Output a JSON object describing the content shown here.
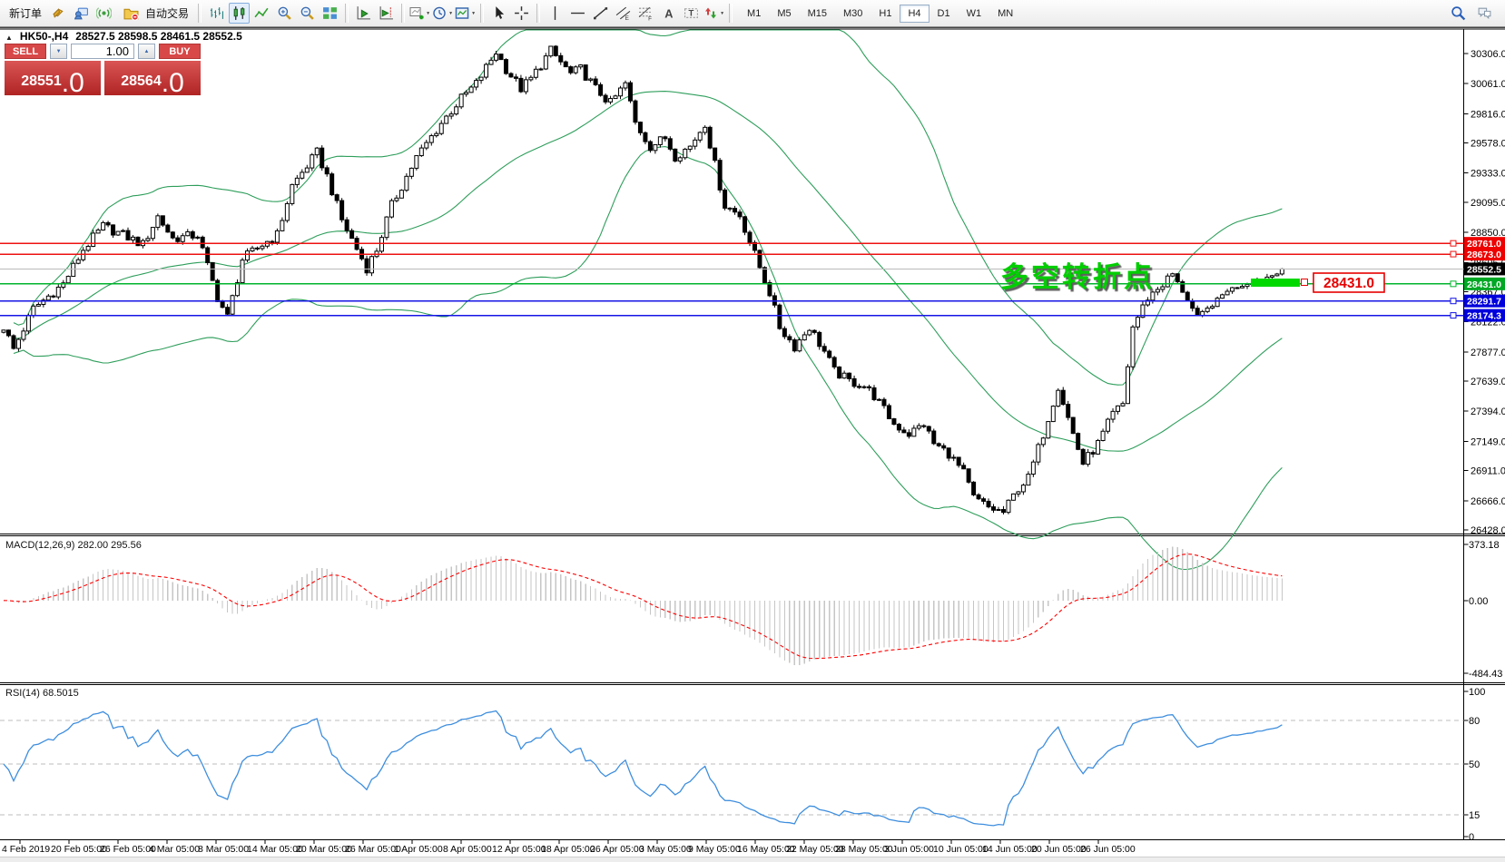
{
  "toolbar": {
    "new_order": "新订单",
    "autotrading": "自动交易",
    "timeframes": [
      "M1",
      "M5",
      "M15",
      "M30",
      "H1",
      "H4",
      "D1",
      "W1",
      "MN"
    ],
    "active_timeframe": "H4",
    "icon_names": [
      "market-watch",
      "terminal",
      "signals",
      "autotrading",
      "bar-chart",
      "candlestick-chart",
      "line-chart",
      "zoom-in",
      "zoom-out",
      "tile-windows",
      "auto-scroll",
      "chart-shift",
      "new-chart",
      "periods",
      "templates",
      "cursor",
      "crosshair",
      "vertical-line",
      "horizontal-line",
      "trendline",
      "equidistant-channel",
      "fibonacci",
      "text",
      "text-label",
      "arrows",
      "search",
      "chat"
    ]
  },
  "chart": {
    "title_symbol": "HK50-,H4",
    "title_ohlc": "28527.5 28598.5 28461.5 28552.5",
    "trade_panel": {
      "sell_label": "SELL",
      "buy_label": "BUY",
      "volume": "1.00",
      "sell_price": "28551",
      "sell_price_frac": ".0",
      "buy_price": "28564",
      "buy_price_frac": ".0"
    },
    "annotation_text": "多空转折点",
    "annotation_color": "#00ce00",
    "highlight_color": "#00d800",
    "price_tag_text": "28431.0",
    "price_tag_color": "#e60000",
    "price_axis_ticks": [
      30306.0,
      30061.0,
      29816.0,
      29578.0,
      29333.0,
      29095.0,
      28850.0,
      28605.0,
      28367.0,
      28122.0,
      27877.0,
      27639.0,
      27394.0,
      27149.0,
      26911.0,
      26666.0,
      26428.0
    ],
    "level_lines": [
      {
        "label": "28761.0",
        "price": 28761.0,
        "color": "#ee1111",
        "label_bg": "#ee0000",
        "width": 1.6
      },
      {
        "label": "28673.0",
        "price": 28673.0,
        "color": "#ee1111",
        "label_bg": "#ee0000",
        "width": 1.6
      },
      {
        "label": "28552.5",
        "price": 28552.5,
        "color": "#bbbbbb",
        "label_bg": "#000000",
        "width": 1,
        "handle": false,
        "role": "bid"
      },
      {
        "label": "28431.0",
        "price": 28431.0,
        "color": "#00b42c",
        "label_bg": "#00a824",
        "width": 1.5
      },
      {
        "label": "28291.7",
        "price": 28291.7,
        "color": "#1414e6",
        "label_bg": "#0000dc",
        "width": 1.6
      },
      {
        "label": "28174.3",
        "price": 28174.3,
        "color": "#1414e6",
        "label_bg": "#0000dc",
        "width": 1.6
      }
    ]
  },
  "macd": {
    "label": "MACD(12,26,9) 282.00 295.56",
    "axis_ticks": [
      373.18,
      0,
      -484.43
    ],
    "histogram_color": "#c6c6c6",
    "signal_color": "#ff0000",
    "last_values": [
      282.0,
      295.56
    ]
  },
  "rsi": {
    "label": "RSI(14) 68.5015",
    "axis_ticks": [
      100,
      80,
      50,
      15,
      0
    ],
    "levels": [
      80,
      50,
      15
    ],
    "line_color": "#3e8ede",
    "last_value": 68.5015
  },
  "time_axis": [
    "4 Feb 2019",
    "20 Feb 05:00",
    "26 Feb 05:00",
    "4 Mar 05:00",
    "8 Mar 05:00",
    "14 Mar 05:00",
    "20 Mar 05:00",
    "26 Mar 05:00",
    "1 Apr 05:00",
    "8 Apr 05:00",
    "12 Apr 05:00",
    "18 Apr 05:00",
    "26 Apr 05:00",
    "3 May 05:00",
    "9 May 05:00",
    "16 May 05:00",
    "22 May 05:00",
    "28 May 05:00",
    "3 Jun 05:00",
    "10 Jun 05:00",
    "14 Jun 05:00",
    "20 Jun 05:00",
    "26 Jun 05:00"
  ],
  "chart_data": {
    "type": "candlestick",
    "symbol": "HK50-",
    "timeframe": "H4",
    "visible_ohlc": {
      "open": 28527.5,
      "high": 28598.5,
      "low": 28461.5,
      "close": 28552.5
    },
    "last_close": 28552.5,
    "ylim": [
      26428.0,
      30306.0
    ],
    "bars": 258,
    "key_levels": [
      28761.0,
      28673.0,
      28431.0,
      28291.7,
      28174.3
    ],
    "indicators": [
      {
        "name": "Bollinger Bands",
        "color": "#2e9e5b",
        "render_period": 48,
        "deviation": 2
      },
      {
        "name": "MACD",
        "params": "12,26,9"
      },
      {
        "name": "RSI",
        "params": "14"
      }
    ],
    "close_waypoints": [
      [
        0,
        28080
      ],
      [
        2,
        27900
      ],
      [
        6,
        28230
      ],
      [
        12,
        28430
      ],
      [
        16,
        28710
      ],
      [
        20,
        28900
      ],
      [
        24,
        28830
      ],
      [
        28,
        28750
      ],
      [
        31,
        28980
      ],
      [
        34,
        28800
      ],
      [
        39,
        28830
      ],
      [
        43,
        28320
      ],
      [
        45,
        28160
      ],
      [
        48,
        28630
      ],
      [
        52,
        28750
      ],
      [
        55,
        28830
      ],
      [
        58,
        29230
      ],
      [
        63,
        29500
      ],
      [
        65,
        29310
      ],
      [
        68,
        28950
      ],
      [
        73,
        28560
      ],
      [
        75,
        28710
      ],
      [
        78,
        29070
      ],
      [
        83,
        29460
      ],
      [
        88,
        29740
      ],
      [
        92,
        29940
      ],
      [
        95,
        30060
      ],
      [
        99,
        30320
      ],
      [
        101,
        30180
      ],
      [
        104,
        30020
      ],
      [
        106,
        30100
      ],
      [
        110,
        30330
      ],
      [
        114,
        30140
      ],
      [
        116,
        30180
      ],
      [
        119,
        30020
      ],
      [
        122,
        29900
      ],
      [
        125,
        30060
      ],
      [
        127,
        29740
      ],
      [
        130,
        29550
      ],
      [
        133,
        29620
      ],
      [
        135,
        29470
      ],
      [
        138,
        29550
      ],
      [
        141,
        29740
      ],
      [
        144,
        29230
      ],
      [
        145,
        29070
      ],
      [
        148,
        28990
      ],
      [
        151,
        28670
      ],
      [
        154,
        28360
      ],
      [
        156,
        28080
      ],
      [
        159,
        27920
      ],
      [
        162,
        28080
      ],
      [
        165,
        27880
      ],
      [
        167,
        27720
      ],
      [
        170,
        27640
      ],
      [
        173,
        27600
      ],
      [
        175,
        27520
      ],
      [
        179,
        27290
      ],
      [
        182,
        27210
      ],
      [
        185,
        27290
      ],
      [
        187,
        27130
      ],
      [
        190,
        27050
      ],
      [
        193,
        26890
      ],
      [
        195,
        26690
      ],
      [
        198,
        26610
      ],
      [
        201,
        26570
      ],
      [
        204,
        26770
      ],
      [
        206,
        26850
      ],
      [
        209,
        27210
      ],
      [
        212,
        27600
      ],
      [
        215,
        27210
      ],
      [
        217,
        26970
      ],
      [
        220,
        27130
      ],
      [
        223,
        27370
      ],
      [
        225,
        27450
      ],
      [
        227,
        28080
      ],
      [
        230,
        28320
      ],
      [
        233,
        28430
      ],
      [
        235,
        28510
      ],
      [
        238,
        28300
      ],
      [
        240,
        28160
      ],
      [
        243,
        28260
      ],
      [
        246,
        28380
      ],
      [
        249,
        28420
      ],
      [
        252,
        28460
      ],
      [
        255,
        28500
      ],
      [
        257,
        28552.5
      ]
    ]
  }
}
